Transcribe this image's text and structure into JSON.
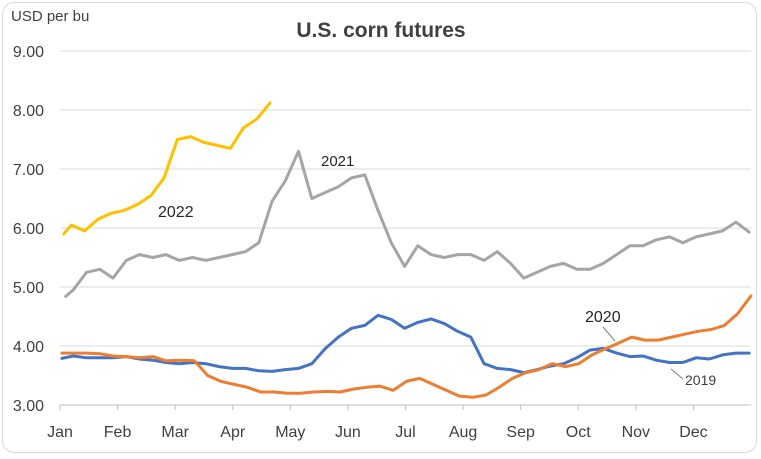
{
  "chart_data": {
    "type": "line",
    "title": "U.S. corn futures",
    "ylabel": "USD per bu",
    "xlabel": "",
    "ylim": [
      3.0,
      9.0
    ],
    "yticks": [
      "3.00",
      "4.00",
      "5.00",
      "6.00",
      "7.00",
      "8.00",
      "9.00"
    ],
    "ytick_values": [
      3,
      4,
      5,
      6,
      7,
      8,
      9
    ],
    "categories": [
      "Jan",
      "Feb",
      "Mar",
      "Apr",
      "May",
      "Jun",
      "Jul",
      "Aug",
      "Sep",
      "Oct",
      "Nov",
      "Dec"
    ],
    "grid": true,
    "legend": "none",
    "series": [
      {
        "name": "2019",
        "color": "#4472C4",
        "x": [
          "2019-01-02",
          "2019-01-08",
          "2019-01-15",
          "2019-01-22",
          "2019-01-29",
          "2019-02-05",
          "2019-02-12",
          "2019-02-19",
          "2019-02-26",
          "2019-03-05",
          "2019-03-12",
          "2019-03-19",
          "2019-03-26",
          "2019-04-02",
          "2019-04-09",
          "2019-04-16",
          "2019-04-23",
          "2019-04-30",
          "2019-05-07",
          "2019-05-14",
          "2019-05-21",
          "2019-05-28",
          "2019-06-04",
          "2019-06-11",
          "2019-06-18",
          "2019-06-25",
          "2019-07-02",
          "2019-07-09",
          "2019-07-16",
          "2019-07-23",
          "2019-07-30",
          "2019-08-06",
          "2019-08-13",
          "2019-08-20",
          "2019-08-27",
          "2019-09-03",
          "2019-09-10",
          "2019-09-17",
          "2019-09-24",
          "2019-10-01",
          "2019-10-08",
          "2019-10-15",
          "2019-10-22",
          "2019-10-29",
          "2019-11-05",
          "2019-11-12",
          "2019-11-19",
          "2019-11-26",
          "2019-12-03",
          "2019-12-10",
          "2019-12-17",
          "2019-12-24",
          "2019-12-31"
        ],
        "values": [
          3.79,
          3.83,
          3.8,
          3.8,
          3.8,
          3.82,
          3.78,
          3.76,
          3.72,
          3.7,
          3.72,
          3.7,
          3.65,
          3.62,
          3.62,
          3.58,
          3.57,
          3.6,
          3.62,
          3.7,
          3.95,
          4.15,
          4.3,
          4.35,
          4.52,
          4.45,
          4.3,
          4.4,
          4.46,
          4.38,
          4.25,
          4.15,
          3.7,
          3.62,
          3.6,
          3.55,
          3.6,
          3.66,
          3.7,
          3.8,
          3.93,
          3.96,
          3.88,
          3.82,
          3.83,
          3.76,
          3.72,
          3.72,
          3.8,
          3.78,
          3.85,
          3.88,
          3.88
        ]
      },
      {
        "name": "2020",
        "color": "#ED7D31",
        "x": [
          "2020-01-02",
          "2020-01-08",
          "2020-01-15",
          "2020-01-22",
          "2020-01-29",
          "2020-02-05",
          "2020-02-12",
          "2020-02-19",
          "2020-02-26",
          "2020-03-05",
          "2020-03-12",
          "2020-03-19",
          "2020-03-26",
          "2020-04-02",
          "2020-04-09",
          "2020-04-16",
          "2020-04-23",
          "2020-04-30",
          "2020-05-07",
          "2020-05-14",
          "2020-05-21",
          "2020-05-28",
          "2020-06-04",
          "2020-06-11",
          "2020-06-18",
          "2020-06-25",
          "2020-07-02",
          "2020-07-09",
          "2020-07-16",
          "2020-07-23",
          "2020-07-30",
          "2020-08-06",
          "2020-08-13",
          "2020-08-20",
          "2020-08-27",
          "2020-09-03",
          "2020-09-10",
          "2020-09-17",
          "2020-09-24",
          "2020-10-01",
          "2020-10-08",
          "2020-10-15",
          "2020-10-22",
          "2020-10-29",
          "2020-11-05",
          "2020-11-12",
          "2020-11-19",
          "2020-11-26",
          "2020-12-03",
          "2020-12-10",
          "2020-12-17",
          "2020-12-24",
          "2020-12-31"
        ],
        "values": [
          3.88,
          3.88,
          3.88,
          3.87,
          3.83,
          3.82,
          3.8,
          3.82,
          3.75,
          3.76,
          3.75,
          3.5,
          3.4,
          3.35,
          3.3,
          3.22,
          3.22,
          3.2,
          3.2,
          3.22,
          3.23,
          3.22,
          3.27,
          3.3,
          3.32,
          3.25,
          3.4,
          3.45,
          3.35,
          3.25,
          3.15,
          3.13,
          3.17,
          3.3,
          3.45,
          3.55,
          3.6,
          3.7,
          3.65,
          3.7,
          3.85,
          3.95,
          4.05,
          4.15,
          4.1,
          4.1,
          4.15,
          4.2,
          4.25,
          4.28,
          4.35,
          4.55,
          4.85
        ]
      },
      {
        "name": "2021",
        "color": "#A5A5A5",
        "x": [
          "2021-01-04",
          "2021-01-08",
          "2021-01-15",
          "2021-01-22",
          "2021-01-29",
          "2021-02-05",
          "2021-02-12",
          "2021-02-19",
          "2021-02-26",
          "2021-03-05",
          "2021-03-12",
          "2021-03-19",
          "2021-03-26",
          "2021-04-02",
          "2021-04-09",
          "2021-04-16",
          "2021-04-23",
          "2021-04-30",
          "2021-05-07",
          "2021-05-14",
          "2021-05-21",
          "2021-05-28",
          "2021-06-04",
          "2021-06-11",
          "2021-06-18",
          "2021-06-25",
          "2021-07-02",
          "2021-07-09",
          "2021-07-16",
          "2021-07-23",
          "2021-07-30",
          "2021-08-06",
          "2021-08-13",
          "2021-08-20",
          "2021-08-27",
          "2021-09-03",
          "2021-09-10",
          "2021-09-17",
          "2021-09-24",
          "2021-10-01",
          "2021-10-08",
          "2021-10-15",
          "2021-10-22",
          "2021-10-29",
          "2021-11-05",
          "2021-11-12",
          "2021-11-19",
          "2021-11-26",
          "2021-12-03",
          "2021-12-10",
          "2021-12-17",
          "2021-12-24",
          "2021-12-31"
        ],
        "values": [
          4.84,
          4.95,
          5.25,
          5.3,
          5.15,
          5.45,
          5.55,
          5.5,
          5.55,
          5.45,
          5.5,
          5.45,
          5.5,
          5.55,
          5.6,
          5.75,
          6.45,
          6.8,
          7.3,
          6.5,
          6.6,
          6.7,
          6.85,
          6.9,
          6.3,
          5.75,
          5.35,
          5.7,
          5.55,
          5.5,
          5.55,
          5.55,
          5.45,
          5.6,
          5.4,
          5.15,
          5.25,
          5.35,
          5.4,
          5.3,
          5.3,
          5.4,
          5.55,
          5.7,
          5.7,
          5.8,
          5.85,
          5.75,
          5.85,
          5.9,
          5.95,
          6.1,
          5.93
        ]
      },
      {
        "name": "2022",
        "color": "#FFC000",
        "x": [
          "2022-01-03",
          "2022-01-07",
          "2022-01-14",
          "2022-01-21",
          "2022-01-28",
          "2022-02-04",
          "2022-02-11",
          "2022-02-18",
          "2022-02-25",
          "2022-03-04",
          "2022-03-11",
          "2022-03-18",
          "2022-03-25",
          "2022-04-01",
          "2022-04-08",
          "2022-04-15",
          "2022-04-22"
        ],
        "values": [
          5.9,
          6.05,
          5.95,
          6.15,
          6.25,
          6.3,
          6.4,
          6.55,
          6.85,
          7.5,
          7.55,
          7.45,
          7.4,
          7.35,
          7.7,
          7.85,
          8.12
        ]
      }
    ],
    "annotations": [
      {
        "text": "2022",
        "series": "2022"
      },
      {
        "text": "2021",
        "series": "2021"
      },
      {
        "text": "2020",
        "series": "2020"
      },
      {
        "text": "2019",
        "series": "2019"
      }
    ]
  }
}
